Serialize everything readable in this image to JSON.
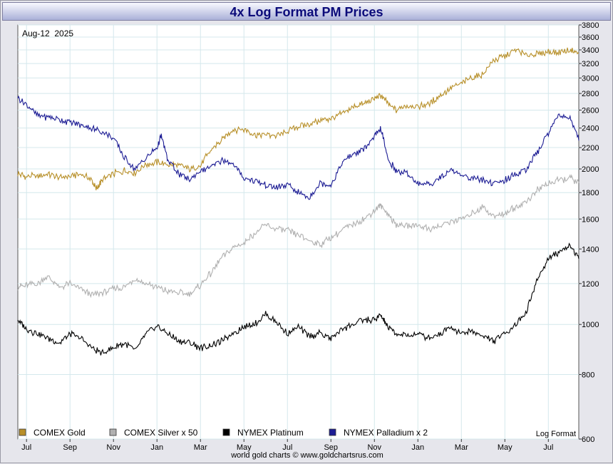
{
  "chart_data": {
    "type": "line",
    "title": "4x Log Format PM Prices",
    "date_label": "Aug-12  2025",
    "scale_note": "Log Format",
    "y_scale": "log",
    "ylim": [
      600,
      3800
    ],
    "y_ticks": [
      600,
      800,
      1000,
      1200,
      1400,
      1600,
      1800,
      2000,
      2200,
      2400,
      2600,
      2800,
      3000,
      3200,
      3400,
      3600,
      3800
    ],
    "x_ticks": [
      "Jul",
      "Sep",
      "Nov",
      "Jan",
      "Mar",
      "May",
      "Jul",
      "Sep",
      "Nov",
      "Jan",
      "Mar",
      "May",
      "Jul"
    ],
    "x_tick_months": [
      0,
      2,
      4,
      6,
      8,
      10,
      12,
      14,
      16,
      18,
      20,
      22,
      24
    ],
    "x_range_months": [
      -0.4,
      25.4
    ],
    "series": [
      {
        "name": "COMEX Gold",
        "color": "#b8902a",
        "points": [
          [
            -0.4,
            1960
          ],
          [
            0,
            1930
          ],
          [
            0.5,
            1940
          ],
          [
            1,
            1950
          ],
          [
            1.5,
            1925
          ],
          [
            2,
            1935
          ],
          [
            2.5,
            1960
          ],
          [
            3,
            1900
          ],
          [
            3.2,
            1830
          ],
          [
            3.5,
            1900
          ],
          [
            4,
            1960
          ],
          [
            4.5,
            1985
          ],
          [
            5,
            1970
          ],
          [
            5.5,
            2040
          ],
          [
            6,
            2060
          ],
          [
            6.5,
            2040
          ],
          [
            7,
            2035
          ],
          [
            7.5,
            2000
          ],
          [
            8,
            2030
          ],
          [
            8.5,
            2180
          ],
          [
            9,
            2280
          ],
          [
            9.5,
            2380
          ],
          [
            10,
            2390
          ],
          [
            10.5,
            2330
          ],
          [
            11,
            2330
          ],
          [
            11.5,
            2320
          ],
          [
            12,
            2360
          ],
          [
            12.5,
            2420
          ],
          [
            13,
            2440
          ],
          [
            13.5,
            2480
          ],
          [
            14,
            2500
          ],
          [
            14.5,
            2560
          ],
          [
            15,
            2640
          ],
          [
            15.5,
            2670
          ],
          [
            16,
            2740
          ],
          [
            16.3,
            2780
          ],
          [
            16.6,
            2680
          ],
          [
            17,
            2600
          ],
          [
            17.5,
            2650
          ],
          [
            18,
            2640
          ],
          [
            18.5,
            2680
          ],
          [
            19,
            2760
          ],
          [
            19.5,
            2860
          ],
          [
            20,
            2930
          ],
          [
            20.5,
            3000
          ],
          [
            21,
            3050
          ],
          [
            21.5,
            3250
          ],
          [
            22,
            3300
          ],
          [
            22.5,
            3400
          ],
          [
            23,
            3330
          ],
          [
            23.5,
            3330
          ],
          [
            24,
            3370
          ],
          [
            24.5,
            3360
          ],
          [
            25,
            3400
          ],
          [
            25.4,
            3350
          ]
        ]
      },
      {
        "name": "COMEX Silver x 50",
        "color": "#b0b0b0",
        "points": [
          [
            -0.4,
            1180
          ],
          [
            0,
            1190
          ],
          [
            0.5,
            1200
          ],
          [
            1,
            1240
          ],
          [
            1.5,
            1180
          ],
          [
            2,
            1200
          ],
          [
            2.5,
            1170
          ],
          [
            3,
            1140
          ],
          [
            3.5,
            1150
          ],
          [
            4,
            1170
          ],
          [
            4.5,
            1180
          ],
          [
            5,
            1230
          ],
          [
            5.5,
            1200
          ],
          [
            6,
            1180
          ],
          [
            6.5,
            1160
          ],
          [
            7,
            1150
          ],
          [
            7.5,
            1150
          ],
          [
            8,
            1190
          ],
          [
            8.5,
            1260
          ],
          [
            9,
            1350
          ],
          [
            9.5,
            1410
          ],
          [
            10,
            1440
          ],
          [
            10.5,
            1500
          ],
          [
            11,
            1560
          ],
          [
            11.5,
            1530
          ],
          [
            12,
            1520
          ],
          [
            12.5,
            1490
          ],
          [
            13,
            1450
          ],
          [
            13.5,
            1430
          ],
          [
            14,
            1470
          ],
          [
            14.5,
            1520
          ],
          [
            15,
            1560
          ],
          [
            15.5,
            1600
          ],
          [
            16,
            1660
          ],
          [
            16.3,
            1700
          ],
          [
            16.6,
            1640
          ],
          [
            17,
            1560
          ],
          [
            17.5,
            1550
          ],
          [
            18,
            1560
          ],
          [
            18.5,
            1530
          ],
          [
            19,
            1550
          ],
          [
            19.5,
            1580
          ],
          [
            20,
            1600
          ],
          [
            20.5,
            1640
          ],
          [
            21,
            1690
          ],
          [
            21.5,
            1620
          ],
          [
            22,
            1640
          ],
          [
            22.5,
            1690
          ],
          [
            23,
            1730
          ],
          [
            23.5,
            1820
          ],
          [
            24,
            1880
          ],
          [
            24.5,
            1900
          ],
          [
            25,
            1920
          ],
          [
            25.4,
            1880
          ]
        ]
      },
      {
        "name": "NYMEX Platinum",
        "color": "#000000",
        "points": [
          [
            -0.4,
            1020
          ],
          [
            0,
            980
          ],
          [
            0.5,
            960
          ],
          [
            1,
            940
          ],
          [
            1.5,
            920
          ],
          [
            2,
            960
          ],
          [
            2.5,
            940
          ],
          [
            3,
            900
          ],
          [
            3.5,
            880
          ],
          [
            4,
            900
          ],
          [
            4.5,
            920
          ],
          [
            5,
            890
          ],
          [
            5.5,
            960
          ],
          [
            6,
            990
          ],
          [
            6.5,
            960
          ],
          [
            7,
            930
          ],
          [
            7.5,
            920
          ],
          [
            8,
            900
          ],
          [
            8.5,
            910
          ],
          [
            9,
            930
          ],
          [
            9.5,
            960
          ],
          [
            10,
            990
          ],
          [
            10.5,
            1000
          ],
          [
            11,
            1050
          ],
          [
            11.5,
            1010
          ],
          [
            12,
            960
          ],
          [
            12.5,
            990
          ],
          [
            13,
            950
          ],
          [
            13.5,
            960
          ],
          [
            14,
            940
          ],
          [
            14.5,
            980
          ],
          [
            15,
            1000
          ],
          [
            15.5,
            1020
          ],
          [
            16,
            1020
          ],
          [
            16.3,
            1040
          ],
          [
            16.6,
            990
          ],
          [
            17,
            960
          ],
          [
            17.5,
            950
          ],
          [
            18,
            960
          ],
          [
            18.5,
            940
          ],
          [
            19,
            960
          ],
          [
            19.5,
            990
          ],
          [
            20,
            960
          ],
          [
            20.5,
            970
          ],
          [
            21,
            950
          ],
          [
            21.5,
            930
          ],
          [
            22,
            960
          ],
          [
            22.5,
            1000
          ],
          [
            23,
            1060
          ],
          [
            23.5,
            1220
          ],
          [
            24,
            1340
          ],
          [
            24.5,
            1380
          ],
          [
            25,
            1420
          ],
          [
            25.4,
            1340
          ]
        ]
      },
      {
        "name": "NYMEX Palladium x 2",
        "color": "#1c1c94",
        "points": [
          [
            -0.4,
            2750
          ],
          [
            0,
            2660
          ],
          [
            0.5,
            2540
          ],
          [
            1,
            2520
          ],
          [
            1.5,
            2500
          ],
          [
            2,
            2460
          ],
          [
            2.5,
            2430
          ],
          [
            3,
            2400
          ],
          [
            3.5,
            2360
          ],
          [
            4,
            2300
          ],
          [
            4.5,
            2100
          ],
          [
            5,
            2000
          ],
          [
            5.5,
            2100
          ],
          [
            6,
            2200
          ],
          [
            6.2,
            2320
          ],
          [
            6.5,
            2080
          ],
          [
            7,
            1960
          ],
          [
            7.5,
            1900
          ],
          [
            8,
            1980
          ],
          [
            8.5,
            2020
          ],
          [
            9,
            2080
          ],
          [
            9.5,
            2040
          ],
          [
            10,
            1920
          ],
          [
            10.5,
            1900
          ],
          [
            11,
            1860
          ],
          [
            11.5,
            1840
          ],
          [
            12,
            1860
          ],
          [
            12.5,
            1800
          ],
          [
            13,
            1760
          ],
          [
            13.5,
            1880
          ],
          [
            14,
            1860
          ],
          [
            14.5,
            2050
          ],
          [
            15,
            2140
          ],
          [
            15.5,
            2180
          ],
          [
            16,
            2300
          ],
          [
            16.3,
            2400
          ],
          [
            16.6,
            2100
          ],
          [
            17,
            1980
          ],
          [
            17.5,
            1960
          ],
          [
            18,
            1880
          ],
          [
            18.5,
            1860
          ],
          [
            19,
            1920
          ],
          [
            19.5,
            2000
          ],
          [
            20,
            1950
          ],
          [
            20.5,
            1920
          ],
          [
            21,
            1900
          ],
          [
            21.5,
            1870
          ],
          [
            22,
            1900
          ],
          [
            22.5,
            1960
          ],
          [
            23,
            2000
          ],
          [
            23.5,
            2150
          ],
          [
            24,
            2350
          ],
          [
            24.5,
            2560
          ],
          [
            25,
            2500
          ],
          [
            25.4,
            2270
          ]
        ]
      }
    ]
  },
  "footer": "world gold charts © www.goldchartsrus.com"
}
